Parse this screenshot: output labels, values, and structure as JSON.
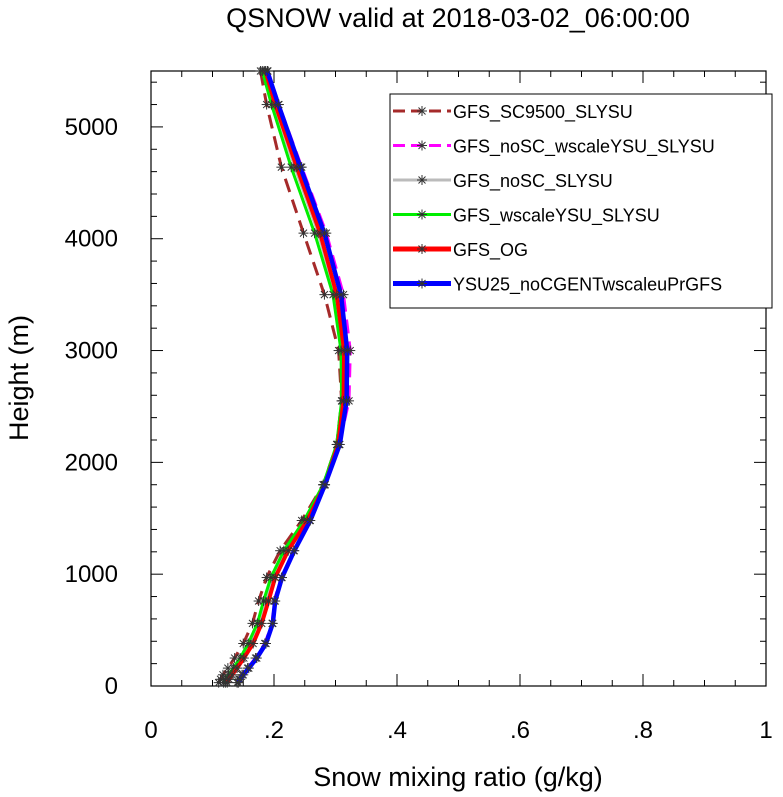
{
  "chart_data": {
    "type": "line",
    "title": "QSNOW valid at 2018-03-02_06:00:00",
    "xlabel": "Snow mixing ratio (g/kg)",
    "ylabel": "Height (m)",
    "xlim": [
      0,
      1
    ],
    "ylim": [
      0,
      5500
    ],
    "xticks": [
      0,
      0.2,
      0.4,
      0.6,
      0.8,
      1
    ],
    "xtick_labels": [
      "0",
      ".2",
      ".4",
      ".6",
      ".8",
      "1"
    ],
    "yticks": [
      0,
      1000,
      2000,
      3000,
      4000,
      5000
    ],
    "ytick_labels": [
      "0",
      "1000",
      "2000",
      "3000",
      "4000",
      "5000"
    ],
    "grid": false,
    "legend_position": "top-right",
    "heights": [
      30,
      60,
      100,
      160,
      250,
      380,
      560,
      760,
      970,
      1210,
      1480,
      1800,
      2160,
      2550,
      3000,
      3500,
      4050,
      4640,
      5200,
      5500
    ],
    "series": [
      {
        "name": "GFS_SC9500_SLYSU",
        "color": "#a52a2a",
        "dash": "dashed",
        "markers": true,
        "values": [
          0.11,
          0.113,
          0.117,
          0.125,
          0.136,
          0.15,
          0.165,
          0.175,
          0.188,
          0.21,
          0.245,
          0.28,
          0.302,
          0.31,
          0.305,
          0.282,
          0.248,
          0.212,
          0.188,
          0.178
        ]
      },
      {
        "name": "GFS_noSC_wscaleYSU_SLYSU",
        "color": "#ff00ff",
        "dash": "dashed",
        "markers": true,
        "values": [
          0.14,
          0.143,
          0.148,
          0.157,
          0.17,
          0.185,
          0.197,
          0.2,
          0.212,
          0.232,
          0.258,
          0.282,
          0.306,
          0.322,
          0.324,
          0.313,
          0.285,
          0.245,
          0.208,
          0.19
        ]
      },
      {
        "name": "GFS_noSC_SLYSU",
        "color": "#bbbbbb",
        "dash": "solid",
        "markers": true,
        "values": [
          0.121,
          0.124,
          0.129,
          0.137,
          0.148,
          0.162,
          0.176,
          0.186,
          0.198,
          0.219,
          0.252,
          0.282,
          0.303,
          0.312,
          0.312,
          0.3,
          0.272,
          0.234,
          0.2,
          0.184
        ]
      },
      {
        "name": "GFS_wscaleYSU_SLYSU",
        "color": "#00ee00",
        "dash": "solid",
        "markers": true,
        "values": [
          0.118,
          0.121,
          0.126,
          0.134,
          0.145,
          0.158,
          0.173,
          0.183,
          0.195,
          0.216,
          0.249,
          0.28,
          0.302,
          0.31,
          0.309,
          0.296,
          0.266,
          0.228,
          0.196,
          0.181
        ]
      },
      {
        "name": "GFS_OG",
        "color": "#ff0000",
        "dash": "solid",
        "markers": true,
        "values": [
          0.124,
          0.127,
          0.132,
          0.14,
          0.151,
          0.166,
          0.18,
          0.191,
          0.202,
          0.223,
          0.254,
          0.283,
          0.304,
          0.313,
          0.314,
          0.302,
          0.275,
          0.237,
          0.202,
          0.186
        ]
      },
      {
        "name": "YSU25_noCGENTwscaleuPrGFS",
        "color": "#0000ff",
        "dash": "solid",
        "markers": true,
        "values": [
          0.142,
          0.145,
          0.15,
          0.159,
          0.172,
          0.187,
          0.198,
          0.202,
          0.213,
          0.233,
          0.259,
          0.283,
          0.307,
          0.318,
          0.319,
          0.309,
          0.282,
          0.243,
          0.207,
          0.189
        ]
      }
    ]
  }
}
